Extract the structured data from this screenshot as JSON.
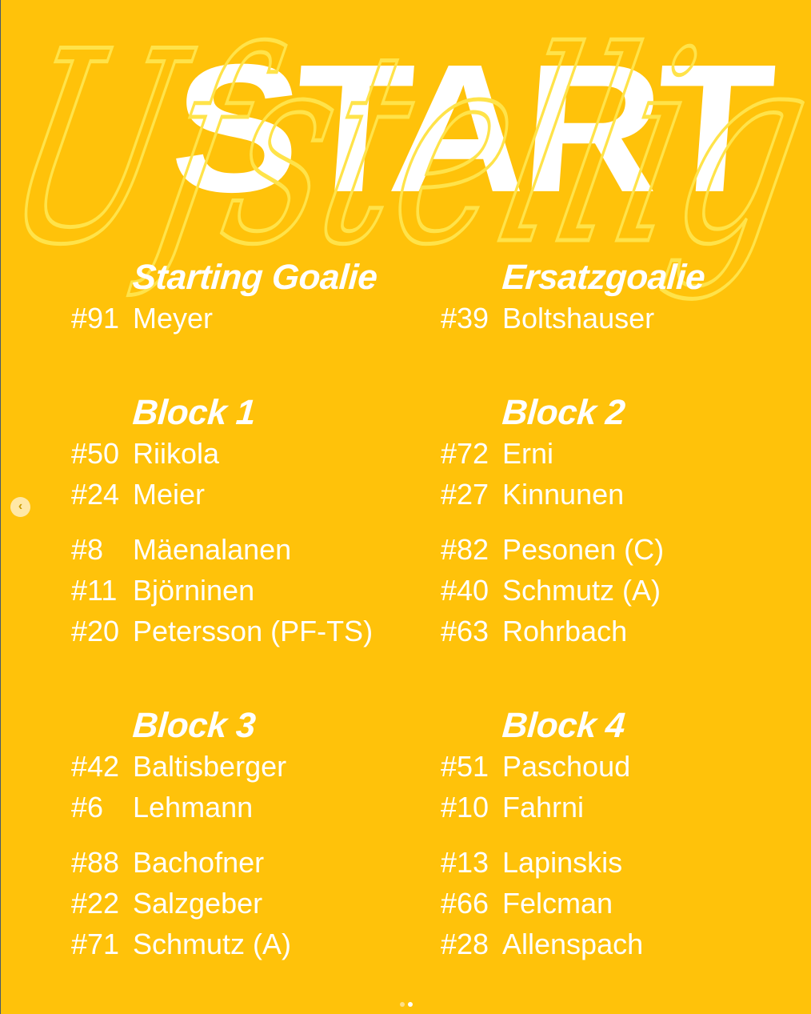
{
  "watermark": "Ufstellig",
  "title": "START",
  "colors": {
    "background": "#FFC20A",
    "text": "#FFFFFF",
    "watermark": "#FFE34A"
  },
  "columns": [
    {
      "sections": [
        {
          "heading": "Starting Goalie",
          "rows": [
            {
              "num": "#91",
              "name": "Meyer"
            }
          ]
        },
        {
          "heading": "Block 1",
          "rows": [
            {
              "num": "#50",
              "name": "Riikola"
            },
            {
              "num": "#24",
              "name": "Meier"
            },
            {
              "num": "#8",
              "name": "Mäenalanen"
            },
            {
              "num": "#11",
              "name": "Björninen"
            },
            {
              "num": "#20",
              "name": "Petersson (PF-TS)"
            }
          ]
        },
        {
          "heading": "Block 3",
          "rows": [
            {
              "num": "#42",
              "name": "Baltisberger"
            },
            {
              "num": "#6",
              "name": "Lehmann"
            },
            {
              "num": "#88",
              "name": "Bachofner"
            },
            {
              "num": "#22",
              "name": "Salzgeber"
            },
            {
              "num": "#71",
              "name": "Schmutz (A)"
            }
          ]
        }
      ]
    },
    {
      "sections": [
        {
          "heading": "Ersatzgoalie",
          "rows": [
            {
              "num": "#39",
              "name": "Boltshauser"
            }
          ]
        },
        {
          "heading": "Block 2",
          "rows": [
            {
              "num": "#72",
              "name": "Erni"
            },
            {
              "num": "#27",
              "name": "Kinnunen"
            },
            {
              "num": "#82",
              "name": "Pesonen (C)"
            },
            {
              "num": "#40",
              "name": "Schmutz (A)"
            },
            {
              "num": "#63",
              "name": "Rohrbach"
            }
          ]
        },
        {
          "heading": "Block 4",
          "rows": [
            {
              "num": "#51",
              "name": "Paschoud"
            },
            {
              "num": "#10",
              "name": "Fahrni"
            },
            {
              "num": "#13",
              "name": "Lapinskis"
            },
            {
              "num": "#66",
              "name": "Felcman"
            },
            {
              "num": "#28",
              "name": "Allenspach"
            }
          ]
        }
      ]
    }
  ],
  "carousel": {
    "prev_icon": "chevron-left-icon",
    "pages": 2,
    "current": 2
  }
}
